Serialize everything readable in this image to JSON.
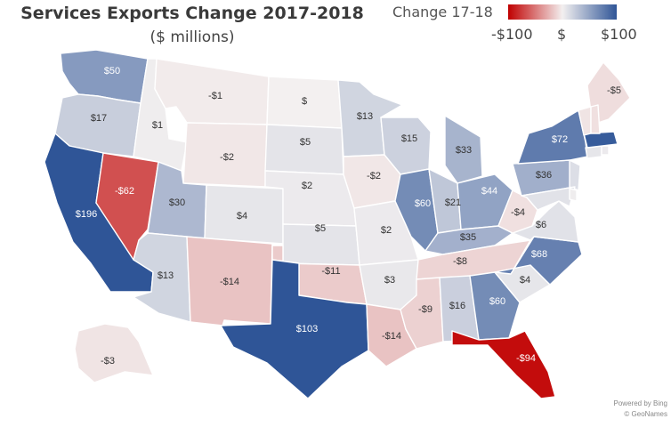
{
  "title": "Services Exports Change 2017-2018",
  "subtitle": "($ millions)",
  "legend": {
    "title": "Change 17-18",
    "min_label": "-$100",
    "mid_label": "$",
    "max_label": "$100",
    "colors": {
      "negative": "#c00000",
      "neutral": "#f3f0f0",
      "positive": "#2f5597"
    }
  },
  "credits": {
    "line1": "Powered by Bing",
    "line2": "© GeoNames"
  },
  "states": [
    {
      "name": "WA",
      "label": "$50",
      "value": 50
    },
    {
      "name": "OR",
      "label": "$17",
      "value": 17
    },
    {
      "name": "CA",
      "label": "$196",
      "value": 196
    },
    {
      "name": "NV",
      "label": "-$62",
      "value": -62
    },
    {
      "name": "ID",
      "label": "$1",
      "value": 1
    },
    {
      "name": "MT",
      "label": "-$1",
      "value": -1
    },
    {
      "name": "WY",
      "label": "-$2",
      "value": -2
    },
    {
      "name": "UT",
      "label": "$30",
      "value": 30
    },
    {
      "name": "AZ",
      "label": "$13",
      "value": 13
    },
    {
      "name": "CO",
      "label": "$4",
      "value": 4
    },
    {
      "name": "NM",
      "label": "-$14",
      "value": -14
    },
    {
      "name": "ND",
      "label": "$",
      "value": 0
    },
    {
      "name": "SD",
      "label": "$5",
      "value": 5
    },
    {
      "name": "NE",
      "label": "$2",
      "value": 2
    },
    {
      "name": "KS",
      "label": "$5",
      "value": 5
    },
    {
      "name": "OK",
      "label": "-$11",
      "value": -11
    },
    {
      "name": "TX",
      "label": "$103",
      "value": 103
    },
    {
      "name": "MN",
      "label": "$13",
      "value": 13
    },
    {
      "name": "IA",
      "label": "-$2",
      "value": -2
    },
    {
      "name": "MO",
      "label": "$2",
      "value": 2
    },
    {
      "name": "AR",
      "label": "$3",
      "value": 3
    },
    {
      "name": "LA",
      "label": "-$14",
      "value": -14
    },
    {
      "name": "WI",
      "label": "$15",
      "value": 15
    },
    {
      "name": "IL",
      "label": "$60",
      "value": 60
    },
    {
      "name": "MI",
      "label": "$33",
      "value": 33
    },
    {
      "name": "IN",
      "label": "$21",
      "value": 21
    },
    {
      "name": "OH",
      "label": "$44",
      "value": 44
    },
    {
      "name": "KY",
      "label": "$35",
      "value": 35
    },
    {
      "name": "TN",
      "label": "-$8",
      "value": -8
    },
    {
      "name": "MS",
      "label": "-$9",
      "value": -9
    },
    {
      "name": "AL",
      "label": "$16",
      "value": 16
    },
    {
      "name": "GA",
      "label": "$60",
      "value": 60
    },
    {
      "name": "FL",
      "label": "-$94",
      "value": -94
    },
    {
      "name": "SC",
      "label": "$4",
      "value": 4
    },
    {
      "name": "NC",
      "label": "$68",
      "value": 68
    },
    {
      "name": "VA",
      "label": "$6",
      "value": 6
    },
    {
      "name": "WV",
      "label": "-$4",
      "value": -4
    },
    {
      "name": "PA",
      "label": "$36",
      "value": 36
    },
    {
      "name": "NY",
      "label": "$72",
      "value": 72
    },
    {
      "name": "ME",
      "label": "-$5",
      "value": -5
    },
    {
      "name": "AK",
      "label": "-$3",
      "value": -3
    },
    {
      "name": "NJ",
      "label": "",
      "value": 8
    },
    {
      "name": "MD",
      "label": "",
      "value": 6
    },
    {
      "name": "DE",
      "label": "",
      "value": 1
    },
    {
      "name": "CT",
      "label": "",
      "value": 4
    },
    {
      "name": "RI",
      "label": "",
      "value": 2
    },
    {
      "name": "MA",
      "label": "",
      "value": 95
    },
    {
      "name": "VT",
      "label": "",
      "value": -3
    },
    {
      "name": "NH",
      "label": "",
      "value": -4
    }
  ]
}
